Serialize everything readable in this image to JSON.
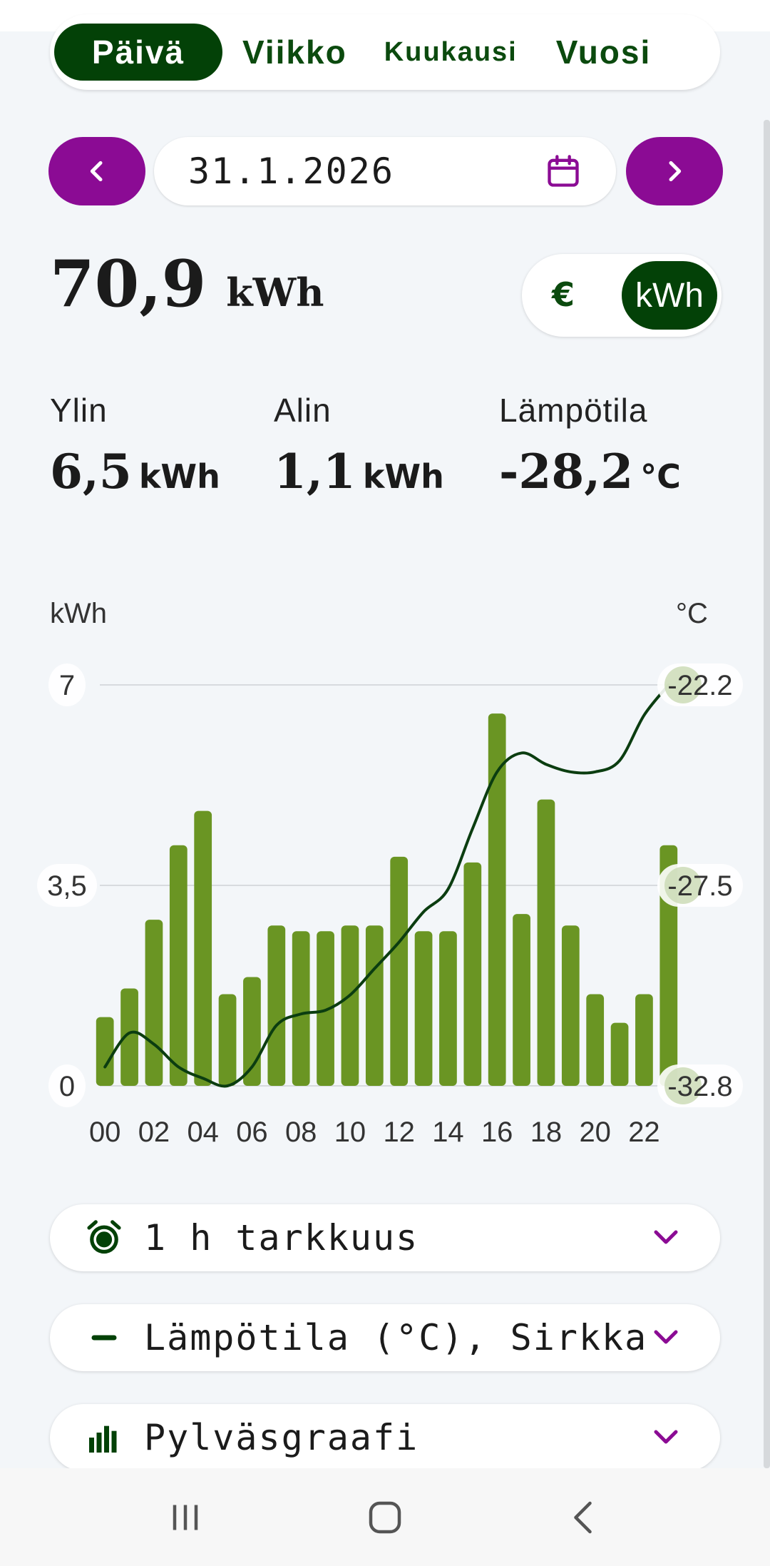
{
  "period_tabs": [
    "Päivä",
    "Viikko",
    "Kuukausi",
    "Vuosi"
  ],
  "date": "31.1.2026",
  "total": {
    "value": "70,9",
    "unit": "kWh"
  },
  "unit_toggle": {
    "euro": "€",
    "kwh": "kWh",
    "selected": "kWh"
  },
  "stats": [
    {
      "label": "Ylin",
      "value": "6,5",
      "unit": "kWh"
    },
    {
      "label": "Alin",
      "value": "1,1",
      "unit": "kWh"
    },
    {
      "label": "Lämpötila",
      "value": "-28,2",
      "unit": "°C"
    }
  ],
  "chart_data": {
    "type": "bar",
    "ylabel": "kWh",
    "y2label": "°C",
    "ylim": [
      0,
      7
    ],
    "y2lim": [
      -32.8,
      -22.2
    ],
    "yticks": [
      "0",
      "3,5",
      "7"
    ],
    "y2ticks": [
      "-32.8",
      "-27.5",
      "-22.2"
    ],
    "xtick_labels": [
      "00",
      "02",
      "04",
      "06",
      "08",
      "10",
      "12",
      "14",
      "16",
      "18",
      "20",
      "22"
    ],
    "categories": [
      "00",
      "01",
      "02",
      "03",
      "04",
      "05",
      "06",
      "07",
      "08",
      "09",
      "10",
      "11",
      "12",
      "13",
      "14",
      "15",
      "16",
      "17",
      "18",
      "19",
      "20",
      "21",
      "22",
      "23"
    ],
    "series": [
      {
        "kind": "bar",
        "axis": "left",
        "values": [
          1.2,
          1.7,
          2.9,
          4.2,
          4.8,
          1.6,
          1.9,
          2.8,
          2.7,
          2.7,
          2.8,
          2.8,
          4.0,
          2.7,
          2.7,
          3.9,
          6.5,
          3.0,
          5.0,
          2.8,
          1.6,
          1.1,
          1.6,
          4.2
        ],
        "color": "#6a9523"
      },
      {
        "kind": "line",
        "axis": "right",
        "values": [
          -32.3,
          -31.4,
          -31.7,
          -32.3,
          -32.6,
          -32.8,
          -32.3,
          -31.2,
          -30.9,
          -30.8,
          -30.4,
          -29.7,
          -29.0,
          -28.2,
          -27.6,
          -26.0,
          -24.5,
          -24.0,
          -24.3,
          -24.5,
          -24.5,
          -24.2,
          -23.0,
          -22.2
        ],
        "color": "#0b3d10"
      }
    ],
    "grid": true,
    "bar_color": "#6a9523",
    "line_color": "#0b3d10"
  },
  "dropdowns": [
    {
      "label": "1 h tarkkuus",
      "icon": "alarm-clock-icon"
    },
    {
      "label": "Lämpötila (°C), Sirkka",
      "icon": "dash-line-icon"
    },
    {
      "label": "Pylväsgraafi",
      "icon": "bar-chart-icon"
    }
  ],
  "colors": {
    "primary_green": "#034107",
    "accent_purple": "#8b0b94",
    "bar_green": "#6a9523",
    "background": "#f3f6f9"
  }
}
